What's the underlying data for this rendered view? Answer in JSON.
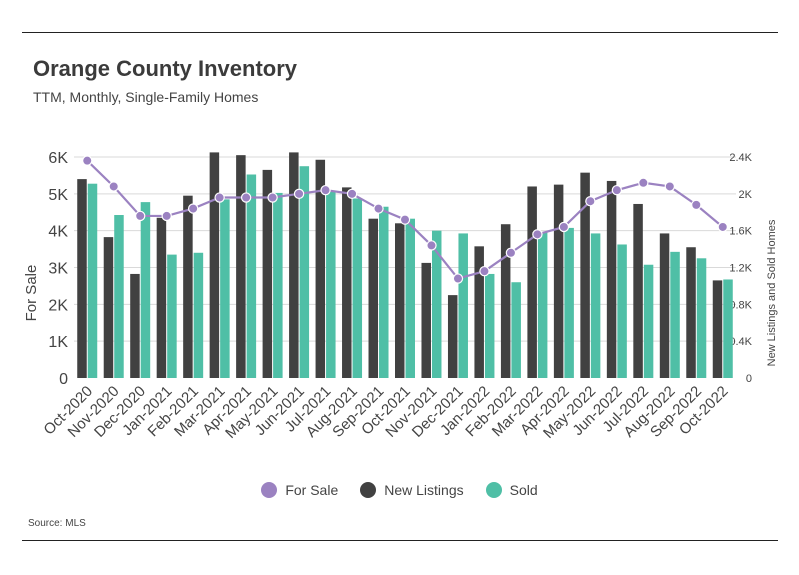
{
  "header": {
    "title": "Orange County Inventory",
    "subtitle": "TTM, Monthly, Single-Family Homes"
  },
  "source": "Source:  MLS",
  "colors": {
    "for_sale": "#9b82c1",
    "new_listings": "#414141",
    "sold": "#4fbfa6",
    "grid": "#d9d9d9"
  },
  "legend": [
    {
      "label": "For Sale",
      "color": "#9b82c1"
    },
    {
      "label": "New Listings",
      "color": "#414141"
    },
    {
      "label": "Sold",
      "color": "#4fbfa6"
    }
  ],
  "chart_data": {
    "type": "bar+line",
    "categories": [
      "Oct-2020",
      "Nov-2020",
      "Dec-2020",
      "Jan-2021",
      "Feb-2021",
      "Mar-2021",
      "Apr-2021",
      "May-2021",
      "Jun-2021",
      "Jul-2021",
      "Aug-2021",
      "Sep-2021",
      "Oct-2021",
      "Nov-2021",
      "Dec-2021",
      "Jan-2022",
      "Feb-2022",
      "Mar-2022",
      "Apr-2022",
      "May-2022",
      "Jun-2022",
      "Jul-2022",
      "Aug-2022",
      "Sep-2022",
      "Oct-2022"
    ],
    "left_axis": {
      "label": "For Sale",
      "range": [
        0,
        6000
      ],
      "ticks": [
        0,
        1000,
        2000,
        3000,
        4000,
        5000,
        6000
      ],
      "tick_labels": [
        "0",
        "1K",
        "2K",
        "3K",
        "4K",
        "5K",
        "6K"
      ]
    },
    "right_axis": {
      "label": "New Listings and Sold Homes",
      "range": [
        0,
        2400
      ],
      "ticks": [
        0,
        400,
        800,
        1200,
        1600,
        2000,
        2400
      ],
      "tick_labels": [
        "0",
        "0.4K",
        "0.8K",
        "1.2K",
        "1.6K",
        "2K",
        "2.4K"
      ]
    },
    "series": [
      {
        "name": "For Sale",
        "type": "line",
        "axis": "left",
        "values": [
          5900,
          5200,
          4400,
          4400,
          4600,
          4900,
          4900,
          4900,
          5000,
          5100,
          5000,
          4600,
          4300,
          3600,
          2700,
          2900,
          3400,
          3900,
          4100,
          4800,
          5100,
          5300,
          5200,
          4700,
          4100
        ]
      },
      {
        "name": "New Listings",
        "type": "bar",
        "axis": "right",
        "values": [
          2160,
          1530,
          1130,
          1740,
          1980,
          2450,
          2420,
          2260,
          2450,
          2370,
          2070,
          1730,
          1680,
          1250,
          900,
          1430,
          1670,
          2080,
          2100,
          2230,
          2140,
          1890,
          1570,
          1420,
          1060
        ]
      },
      {
        "name": "Sold",
        "type": "bar",
        "axis": "right",
        "values": [
          2110,
          1770,
          1910,
          1340,
          1360,
          1940,
          2210,
          2010,
          2300,
          2030,
          1950,
          1860,
          1730,
          1600,
          1570,
          1130,
          1040,
          1580,
          1630,
          1570,
          1450,
          1230,
          1370,
          1300,
          1070
        ]
      }
    ]
  }
}
